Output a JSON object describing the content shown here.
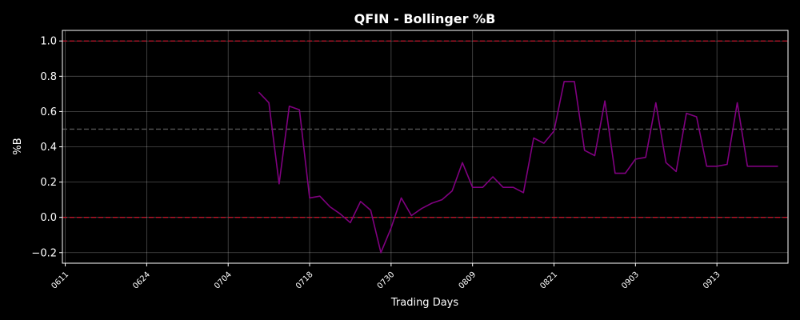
{
  "chart_data": {
    "type": "line",
    "title": "QFIN - Bollinger %B",
    "xlabel": "Trading Days",
    "ylabel": "%B",
    "x_ticks": [
      "0611",
      "0624",
      "0704",
      "0718",
      "0730",
      "0809",
      "0821",
      "0903",
      "0913"
    ],
    "ylim": [
      -0.26,
      1.06
    ],
    "y_ticks": [
      -0.2,
      0.0,
      0.2,
      0.4,
      0.6,
      0.8,
      1.0
    ],
    "y_tick_labels": [
      "−0.2",
      "0.0",
      "0.2",
      "0.4",
      "0.6",
      "0.8",
      "1.0"
    ],
    "grid": true,
    "reference_lines": [
      {
        "y": 1.0,
        "color": "#c0142a",
        "style": "dashed"
      },
      {
        "y": 0.5,
        "color": "#555555",
        "style": "dashed"
      },
      {
        "y": 0.0,
        "color": "#c0142a",
        "style": "dashed"
      }
    ],
    "series": [
      {
        "color": "#800080",
        "x": [
          19,
          20,
          21,
          22,
          23,
          24,
          25,
          26,
          27,
          28,
          29,
          30,
          31,
          32,
          33,
          34,
          35,
          36,
          37,
          38,
          39,
          40,
          41,
          42,
          43,
          44,
          45,
          46,
          47,
          48,
          49,
          50,
          51,
          52,
          53,
          54,
          55,
          56,
          57,
          58,
          59,
          60,
          61,
          62,
          63,
          64,
          65,
          66,
          67,
          68,
          69,
          70
        ],
        "y": [
          0.71,
          0.65,
          0.19,
          0.63,
          0.61,
          0.11,
          0.12,
          0.06,
          0.02,
          -0.03,
          0.09,
          0.04,
          -0.2,
          -0.06,
          0.11,
          0.01,
          0.05,
          0.08,
          0.1,
          0.15,
          0.31,
          0.17,
          0.17,
          0.23,
          0.17,
          0.17,
          0.14,
          0.45,
          0.42,
          0.49,
          0.77,
          0.77,
          0.38,
          0.35,
          0.66,
          0.25,
          0.25,
          0.33,
          0.34,
          0.65,
          0.31,
          0.26,
          0.59,
          0.57,
          0.29,
          0.29,
          0.3,
          0.65,
          0.29,
          0.29,
          0.29,
          0.29
        ]
      }
    ],
    "x_tick_positions": [
      0,
      8,
      16,
      24,
      32,
      40,
      48,
      56,
      64
    ]
  }
}
